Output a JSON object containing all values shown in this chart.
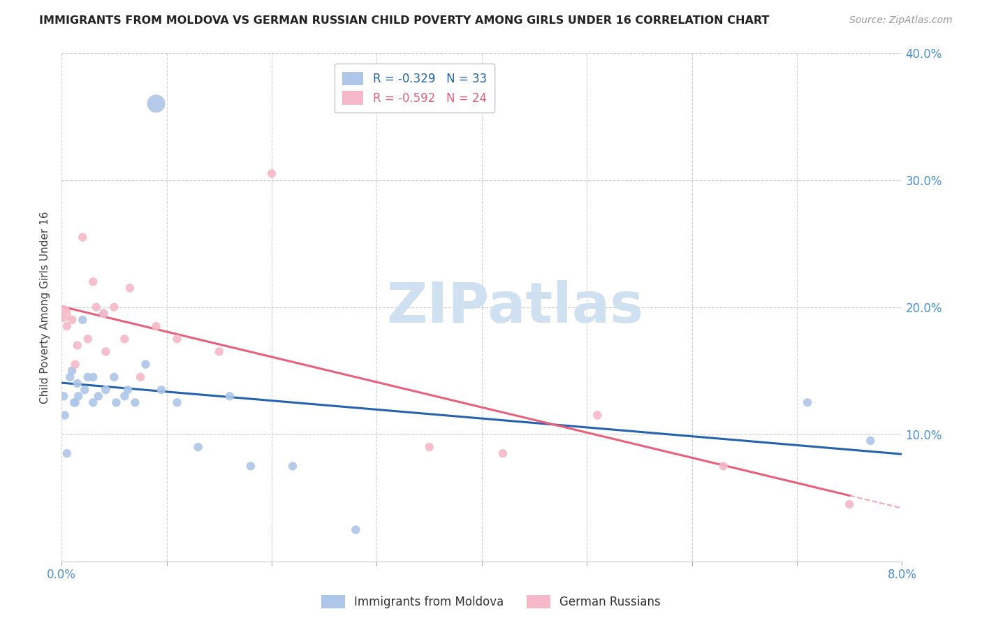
{
  "title": "IMMIGRANTS FROM MOLDOVA VS GERMAN RUSSIAN CHILD POVERTY AMONG GIRLS UNDER 16 CORRELATION CHART",
  "source": "Source: ZipAtlas.com",
  "ylabel": "Child Poverty Among Girls Under 16",
  "xlim": [
    0.0,
    0.08
  ],
  "ylim": [
    0.0,
    0.4
  ],
  "blue_R": -0.329,
  "blue_N": 33,
  "pink_R": -0.592,
  "pink_N": 24,
  "blue_color": "#aec6e8",
  "pink_color": "#f5b8c8",
  "blue_line_color": "#2563b0",
  "pink_line_color": "#e8607a",
  "pink_line_text_color": "#e8607a",
  "blue_line_text_color": "#2563b0",
  "tick_color": "#4a90d9",
  "legend_label_blue": "Immigrants from Moldova",
  "legend_label_pink": "German Russians",
  "watermark_color": "#cfe0f0",
  "blue_x": [
    0.0002,
    0.0003,
    0.0005,
    0.0008,
    0.001,
    0.0012,
    0.0013,
    0.0015,
    0.0016,
    0.002,
    0.0022,
    0.0025,
    0.003,
    0.003,
    0.0035,
    0.004,
    0.0042,
    0.005,
    0.0052,
    0.006,
    0.0063,
    0.007,
    0.008,
    0.009,
    0.0095,
    0.011,
    0.013,
    0.016,
    0.018,
    0.022,
    0.028,
    0.071,
    0.077
  ],
  "blue_y": [
    0.13,
    0.115,
    0.085,
    0.145,
    0.15,
    0.125,
    0.125,
    0.14,
    0.13,
    0.19,
    0.135,
    0.145,
    0.145,
    0.125,
    0.13,
    0.195,
    0.135,
    0.145,
    0.125,
    0.13,
    0.135,
    0.125,
    0.155,
    0.36,
    0.135,
    0.125,
    0.09,
    0.13,
    0.075,
    0.075,
    0.025,
    0.125,
    0.095
  ],
  "blue_sizes": [
    80,
    80,
    80,
    80,
    80,
    80,
    80,
    80,
    80,
    80,
    80,
    80,
    80,
    80,
    80,
    80,
    80,
    80,
    80,
    80,
    80,
    80,
    80,
    350,
    80,
    80,
    80,
    80,
    80,
    80,
    80,
    80,
    80
  ],
  "pink_x": [
    0.0001,
    0.0005,
    0.001,
    0.0013,
    0.0015,
    0.002,
    0.0025,
    0.003,
    0.0033,
    0.004,
    0.0042,
    0.005,
    0.006,
    0.0065,
    0.0075,
    0.009,
    0.011,
    0.015,
    0.02,
    0.035,
    0.042,
    0.051,
    0.063,
    0.075
  ],
  "pink_y": [
    0.195,
    0.185,
    0.19,
    0.155,
    0.17,
    0.255,
    0.175,
    0.22,
    0.2,
    0.195,
    0.165,
    0.2,
    0.175,
    0.215,
    0.145,
    0.185,
    0.175,
    0.165,
    0.305,
    0.09,
    0.085,
    0.115,
    0.075,
    0.045
  ],
  "pink_sizes": [
    300,
    80,
    80,
    80,
    80,
    80,
    80,
    80,
    80,
    80,
    80,
    80,
    80,
    80,
    80,
    80,
    80,
    80,
    80,
    80,
    80,
    80,
    80,
    80
  ]
}
